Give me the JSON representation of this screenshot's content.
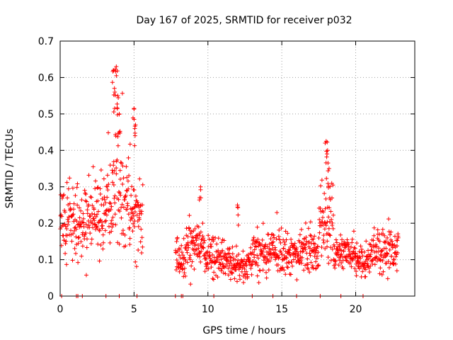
{
  "chart_data": {
    "type": "scatter",
    "title": "Day 167 of 2025, SRMTID for receiver p032",
    "xlabel": "GPS time / hours",
    "ylabel": "SRMTID / TECUs",
    "xlim": [
      0,
      24
    ],
    "ylim": [
      0,
      0.7
    ],
    "xticks": [
      0,
      5,
      10,
      15,
      20
    ],
    "yticks": [
      0,
      0.1,
      0.2,
      0.3,
      0.4,
      0.5,
      0.6,
      0.7
    ],
    "xtick_labels": [
      "0",
      "5",
      "10",
      "15",
      "20"
    ],
    "ytick_labels": [
      "0",
      "0.1",
      "0.2",
      "0.3",
      "0.4",
      "0.5",
      "0.6",
      "0.7"
    ],
    "grid": true,
    "marker": "+",
    "color": "#ff0000",
    "data_gap_hours": [
      5.6,
      7.8
    ],
    "series": [
      {
        "name": "SRMTID",
        "segments": [
          {
            "x_start": 0.0,
            "x_end": 0.5,
            "mean": 0.2,
            "spread": 0.07
          },
          {
            "x_start": 0.5,
            "x_end": 1.0,
            "mean": 0.22,
            "spread": 0.07
          },
          {
            "x_start": 1.0,
            "x_end": 2.0,
            "mean": 0.2,
            "spread": 0.07
          },
          {
            "x_start": 2.0,
            "x_end": 3.0,
            "mean": 0.22,
            "spread": 0.07
          },
          {
            "x_start": 3.0,
            "x_end": 3.5,
            "mean": 0.24,
            "spread": 0.08
          },
          {
            "x_start": 3.5,
            "x_end": 4.3,
            "mean": 0.3,
            "spread": 0.12
          },
          {
            "x_start": 4.3,
            "x_end": 5.0,
            "mean": 0.24,
            "spread": 0.09
          },
          {
            "x_start": 5.0,
            "x_end": 5.6,
            "mean": 0.22,
            "spread": 0.08
          },
          {
            "x_start": 7.8,
            "x_end": 8.5,
            "mean": 0.1,
            "spread": 0.04
          },
          {
            "x_start": 8.5,
            "x_end": 9.8,
            "mean": 0.15,
            "spread": 0.05
          },
          {
            "x_start": 9.8,
            "x_end": 11.0,
            "mean": 0.11,
            "spread": 0.04
          },
          {
            "x_start": 11.0,
            "x_end": 13.0,
            "mean": 0.09,
            "spread": 0.03
          },
          {
            "x_start": 13.0,
            "x_end": 15.0,
            "mean": 0.12,
            "spread": 0.04
          },
          {
            "x_start": 15.0,
            "x_end": 17.5,
            "mean": 0.12,
            "spread": 0.04
          },
          {
            "x_start": 17.5,
            "x_end": 18.5,
            "mean": 0.2,
            "spread": 0.07
          },
          {
            "x_start": 18.5,
            "x_end": 20.0,
            "mean": 0.12,
            "spread": 0.03
          },
          {
            "x_start": 20.0,
            "x_end": 21.0,
            "mean": 0.1,
            "spread": 0.03
          },
          {
            "x_start": 21.0,
            "x_end": 22.9,
            "mean": 0.13,
            "spread": 0.04
          }
        ],
        "peaks": [
          {
            "x": 3.6,
            "y": 0.62
          },
          {
            "x": 3.8,
            "y": 0.63
          },
          {
            "x": 3.7,
            "y": 0.56
          },
          {
            "x": 3.9,
            "y": 0.55
          },
          {
            "x": 4.0,
            "y": 0.5
          },
          {
            "x": 5.0,
            "y": 0.515
          },
          {
            "x": 5.1,
            "y": 0.47
          },
          {
            "x": 9.5,
            "y": 0.3
          },
          {
            "x": 12.0,
            "y": 0.25
          },
          {
            "x": 18.0,
            "y": 0.425
          },
          {
            "x": 18.1,
            "y": 0.4
          },
          {
            "x": 18.2,
            "y": 0.35
          }
        ],
        "zero_points_x": [
          0.1,
          1.1,
          1.2,
          1.5,
          3.1,
          4.0,
          5.2,
          7.8,
          8.2,
          8.3,
          10.4,
          13.0,
          14.4,
          16.0,
          17.6,
          19.0,
          20.5
        ]
      }
    ]
  }
}
